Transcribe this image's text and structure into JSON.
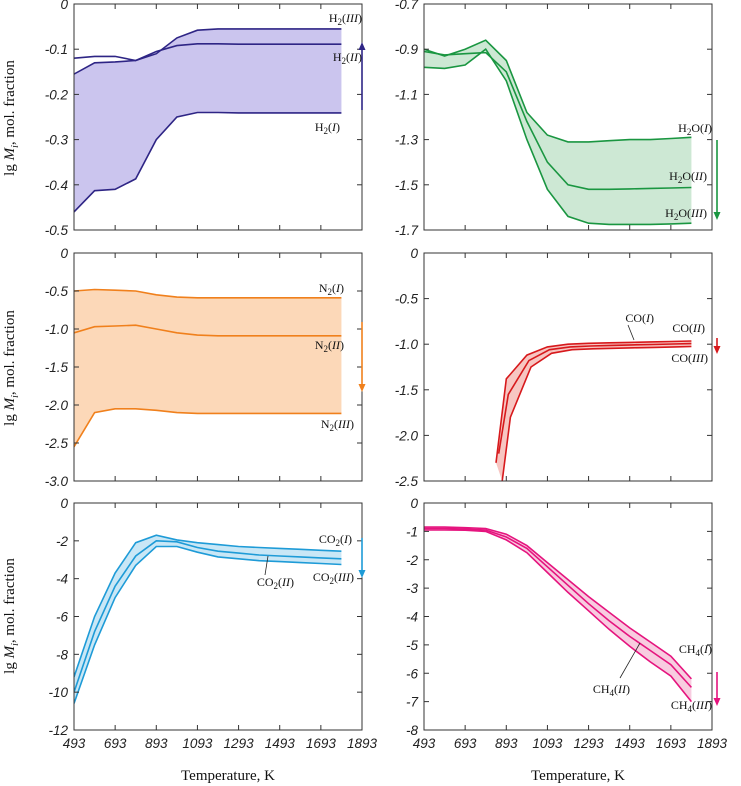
{
  "chart_data": [
    {
      "type": "area",
      "color": "#2e2585",
      "fill": "#cbc5ee",
      "ylim": [
        -0.5,
        0
      ],
      "yticks": [
        "0",
        "-0.1",
        "-0.2",
        "-0.3",
        "-0.4",
        "-0.5"
      ],
      "ytick_values": [
        0,
        -0.1,
        -0.2,
        -0.3,
        -0.4,
        -0.5
      ],
      "series": [
        {
          "name": "H2(III)",
          "x": [
            493,
            593,
            693,
            793,
            893,
            993,
            1093,
            1193,
            1293,
            1393,
            1493,
            1593,
            1693,
            1793
          ],
          "y": [
            -0.155,
            -0.13,
            -0.128,
            -0.125,
            -0.11,
            -0.075,
            -0.058,
            -0.055,
            -0.055,
            -0.055,
            -0.055,
            -0.055,
            -0.055,
            -0.055
          ]
        },
        {
          "name": "H2(II)",
          "x": [
            493,
            593,
            693,
            793,
            893,
            993,
            1093,
            1193,
            1293,
            1393,
            1493,
            1593,
            1693,
            1793
          ],
          "y": [
            -0.12,
            -0.116,
            -0.116,
            -0.125,
            -0.105,
            -0.092,
            -0.088,
            -0.088,
            -0.089,
            -0.089,
            -0.089,
            -0.089,
            -0.089,
            -0.089
          ]
        },
        {
          "name": "H2(I)",
          "x": [
            493,
            593,
            693,
            793,
            893,
            993,
            1093,
            1193,
            1293,
            1393,
            1493,
            1593,
            1693,
            1793
          ],
          "y": [
            -0.46,
            -0.413,
            -0.41,
            -0.387,
            -0.3,
            -0.25,
            -0.24,
            -0.24,
            -0.241,
            -0.241,
            -0.241,
            -0.241,
            -0.241,
            -0.241
          ]
        }
      ],
      "labels": [
        {
          "base": "H",
          "sub": "2",
          "roman": "III",
          "text": "H2(III)"
        },
        {
          "base": "H",
          "sub": "2",
          "roman": "II",
          "text": "H2(II)"
        },
        {
          "base": "H",
          "sub": "2",
          "roman": "I",
          "text": "H2(I)"
        }
      ],
      "arrow": "up"
    },
    {
      "type": "area",
      "color": "#1a9641",
      "fill": "#cde8d4",
      "ylim": [
        -1.7,
        -0.7
      ],
      "yticks": [
        "-0.7",
        "-0.9",
        "-1.1",
        "-1.3",
        "-1.5",
        "-1.7"
      ],
      "ytick_values": [
        -0.7,
        -0.9,
        -1.1,
        -1.3,
        -1.5,
        -1.7
      ],
      "series": [
        {
          "name": "H2O(I)",
          "x": [
            493,
            593,
            693,
            793,
            893,
            993,
            1093,
            1193,
            1293,
            1393,
            1493,
            1593,
            1693,
            1793
          ],
          "y": [
            -0.9,
            -0.93,
            -0.9,
            -0.86,
            -0.95,
            -1.18,
            -1.28,
            -1.31,
            -1.31,
            -1.305,
            -1.3,
            -1.3,
            -1.295,
            -1.29
          ]
        },
        {
          "name": "H2O(II)",
          "x": [
            493,
            593,
            693,
            793,
            893,
            993,
            1093,
            1193,
            1293,
            1393,
            1493,
            1593,
            1693,
            1793
          ],
          "y": [
            -0.91,
            -0.925,
            -0.92,
            -0.915,
            -1.0,
            -1.22,
            -1.4,
            -1.5,
            -1.52,
            -1.52,
            -1.518,
            -1.516,
            -1.514,
            -1.512
          ]
        },
        {
          "name": "H2O(III)",
          "x": [
            493,
            593,
            693,
            793,
            893,
            993,
            1093,
            1193,
            1293,
            1393,
            1493,
            1593,
            1693,
            1793
          ],
          "y": [
            -0.98,
            -0.985,
            -0.97,
            -0.9,
            -1.04,
            -1.3,
            -1.52,
            -1.64,
            -1.67,
            -1.675,
            -1.675,
            -1.675,
            -1.673,
            -1.67
          ]
        }
      ],
      "labels": [
        {
          "base": "H",
          "sub": "2",
          "tail": "O",
          "roman": "I",
          "text": "H2O(I)"
        },
        {
          "base": "H",
          "sub": "2",
          "tail": "O",
          "roman": "II",
          "text": "H2O(II)"
        },
        {
          "base": "H",
          "sub": "2",
          "tail": "O",
          "roman": "III",
          "text": "H2O(III)"
        }
      ],
      "arrow": "down"
    },
    {
      "type": "area",
      "color": "#f0801c",
      "fill": "#fcd8b8",
      "ylim": [
        -3.0,
        0
      ],
      "yticks": [
        "0",
        "-0.5",
        "-1.0",
        "-1.5",
        "-2.0",
        "-2.5",
        "-3.0"
      ],
      "ytick_values": [
        0,
        -0.5,
        -1.0,
        -1.5,
        -2.0,
        -2.5,
        -3.0
      ],
      "series": [
        {
          "name": "N2(I)",
          "x": [
            493,
            593,
            693,
            793,
            893,
            993,
            1093,
            1193,
            1293,
            1393,
            1493,
            1593,
            1693,
            1793
          ],
          "y": [
            -0.5,
            -0.48,
            -0.49,
            -0.5,
            -0.55,
            -0.58,
            -0.59,
            -0.59,
            -0.59,
            -0.59,
            -0.59,
            -0.59,
            -0.59,
            -0.59
          ]
        },
        {
          "name": "N2(II)",
          "x": [
            493,
            593,
            693,
            793,
            893,
            993,
            1093,
            1193,
            1293,
            1393,
            1493,
            1593,
            1693,
            1793
          ],
          "y": [
            -1.05,
            -0.97,
            -0.96,
            -0.95,
            -1.0,
            -1.05,
            -1.08,
            -1.09,
            -1.09,
            -1.09,
            -1.09,
            -1.09,
            -1.09,
            -1.09
          ]
        },
        {
          "name": "N2(III)",
          "x": [
            493,
            593,
            693,
            793,
            893,
            993,
            1093,
            1193,
            1293,
            1393,
            1493,
            1593,
            1693,
            1793
          ],
          "y": [
            -2.55,
            -2.1,
            -2.05,
            -2.05,
            -2.07,
            -2.1,
            -2.11,
            -2.11,
            -2.11,
            -2.11,
            -2.11,
            -2.11,
            -2.11,
            -2.11
          ]
        }
      ],
      "labels": [
        {
          "base": "N",
          "sub": "2",
          "roman": "I",
          "text": "N2(I)"
        },
        {
          "base": "N",
          "sub": "2",
          "roman": "II",
          "text": "N2(II)"
        },
        {
          "base": "N",
          "sub": "2",
          "roman": "III",
          "text": "N2(III)"
        }
      ],
      "arrow": "down"
    },
    {
      "type": "area",
      "color": "#d7191c",
      "fill": "#f7c6c2",
      "ylim": [
        -2.5,
        0
      ],
      "yticks": [
        "0",
        "-0.5",
        "-1.0",
        "-1.5",
        "-2.0",
        "-2.5"
      ],
      "ytick_values": [
        0,
        -0.5,
        -1.0,
        -1.5,
        -2.0,
        -2.5
      ],
      "series": [
        {
          "name": "CO(I)",
          "x": [
            843,
            893,
            993,
            1093,
            1193,
            1293,
            1393,
            1493,
            1593,
            1693,
            1793
          ],
          "y": [
            -2.3,
            -1.38,
            -1.12,
            -1.03,
            -1.0,
            -0.99,
            -0.985,
            -0.98,
            -0.975,
            -0.97,
            -0.965
          ]
        },
        {
          "name": "CO(II)",
          "x": [
            856,
            903,
            1003,
            1103,
            1203,
            1303,
            1403,
            1503,
            1603,
            1703,
            1793
          ],
          "y": [
            -2.2,
            -1.55,
            -1.18,
            -1.06,
            -1.03,
            -1.02,
            -1.013,
            -1.008,
            -1.003,
            -0.998,
            -0.993
          ]
        },
        {
          "name": "CO(III)",
          "x": [
            873,
            913,
            1013,
            1113,
            1213,
            1313,
            1413,
            1513,
            1613,
            1713,
            1793
          ],
          "y": [
            -2.5,
            -1.8,
            -1.25,
            -1.1,
            -1.06,
            -1.05,
            -1.045,
            -1.04,
            -1.035,
            -1.03,
            -1.025
          ]
        }
      ],
      "labels": [
        {
          "base": "CO",
          "roman": "I",
          "text": "CO(I)"
        },
        {
          "base": "CO",
          "roman": "II",
          "text": "CO(II)"
        },
        {
          "base": "CO",
          "roman": "III",
          "text": "CO(III)"
        }
      ],
      "arrow": "down"
    },
    {
      "type": "area",
      "color": "#1e9bd7",
      "fill": "#c9e7f6",
      "ylim": [
        -12,
        0
      ],
      "yticks": [
        "0",
        "-2",
        "-4",
        "-6",
        "-8",
        "-10",
        "-12"
      ],
      "ytick_values": [
        0,
        -2,
        -4,
        -6,
        -8,
        -10,
        -12
      ],
      "series": [
        {
          "name": "CO2(I)",
          "x": [
            493,
            593,
            693,
            793,
            893,
            993,
            1093,
            1193,
            1293,
            1393,
            1493,
            1593,
            1693,
            1793
          ],
          "y": [
            -9.2,
            -6.0,
            -3.7,
            -2.1,
            -1.7,
            -1.95,
            -2.1,
            -2.2,
            -2.3,
            -2.35,
            -2.4,
            -2.45,
            -2.5,
            -2.55
          ]
        },
        {
          "name": "CO2(II)",
          "x": [
            493,
            593,
            693,
            793,
            893,
            993,
            1093,
            1193,
            1293,
            1393,
            1493,
            1593,
            1693,
            1793
          ],
          "y": [
            -10.0,
            -6.8,
            -4.4,
            -2.8,
            -2.0,
            -2.05,
            -2.35,
            -2.55,
            -2.65,
            -2.75,
            -2.8,
            -2.85,
            -2.9,
            -2.95
          ]
        },
        {
          "name": "CO2(III)",
          "x": [
            493,
            593,
            693,
            793,
            893,
            993,
            1093,
            1193,
            1293,
            1393,
            1493,
            1593,
            1693,
            1793
          ],
          "y": [
            -10.6,
            -7.5,
            -5.0,
            -3.3,
            -2.3,
            -2.3,
            -2.6,
            -2.85,
            -2.95,
            -3.05,
            -3.1,
            -3.15,
            -3.2,
            -3.25
          ]
        }
      ],
      "labels": [
        {
          "base": "CO",
          "sub": "2",
          "roman": "I",
          "text": "CO2(I)"
        },
        {
          "base": "CO",
          "sub": "2",
          "roman": "II",
          "text": "CO2(II)"
        },
        {
          "base": "CO",
          "sub": "2",
          "roman": "III",
          "text": "CO2(III)"
        }
      ],
      "arrow": "down"
    },
    {
      "type": "area",
      "color": "#e5147e",
      "fill": "#f8cce0",
      "ylim": [
        -8,
        0
      ],
      "yticks": [
        "0",
        "-1",
        "-2",
        "-3",
        "-4",
        "-5",
        "-6",
        "-7",
        "-8"
      ],
      "ytick_values": [
        0,
        -1,
        -2,
        -3,
        -4,
        -5,
        -6,
        -7,
        -8
      ],
      "series": [
        {
          "name": "CH4(I)",
          "x": [
            493,
            593,
            693,
            793,
            893,
            993,
            1093,
            1193,
            1293,
            1393,
            1493,
            1593,
            1693,
            1793
          ],
          "y": [
            -0.85,
            -0.85,
            -0.87,
            -0.9,
            -1.1,
            -1.5,
            -2.1,
            -2.7,
            -3.3,
            -3.85,
            -4.4,
            -4.9,
            -5.4,
            -6.2
          ]
        },
        {
          "name": "CH4(II)",
          "x": [
            493,
            593,
            693,
            793,
            893,
            993,
            1093,
            1193,
            1293,
            1393,
            1493,
            1593,
            1693,
            1793
          ],
          "y": [
            -0.9,
            -0.9,
            -0.92,
            -0.95,
            -1.2,
            -1.6,
            -2.25,
            -2.9,
            -3.55,
            -4.15,
            -4.7,
            -5.2,
            -5.7,
            -6.5
          ]
        },
        {
          "name": "CH4(III)",
          "x": [
            493,
            593,
            693,
            793,
            893,
            993,
            1093,
            1193,
            1293,
            1393,
            1493,
            1593,
            1693,
            1793
          ],
          "y": [
            -0.95,
            -0.95,
            -0.96,
            -1.0,
            -1.3,
            -1.75,
            -2.45,
            -3.15,
            -3.8,
            -4.45,
            -5.05,
            -5.6,
            -6.1,
            -7.0
          ]
        }
      ],
      "labels": [
        {
          "base": "CH",
          "sub": "4",
          "roman": "I",
          "text": "CH4(I)"
        },
        {
          "base": "CH",
          "sub": "4",
          "roman": "II",
          "text": "CH4(II)"
        },
        {
          "base": "CH",
          "sub": "4",
          "roman": "III",
          "text": "CH4(III)"
        }
      ],
      "arrow": "down"
    }
  ],
  "shared": {
    "xlim": [
      493,
      1893
    ],
    "xticks": [
      "493",
      "693",
      "893",
      "1093",
      "1293",
      "1493",
      "1693",
      "1893"
    ],
    "xtick_values": [
      493,
      693,
      893,
      1093,
      1293,
      1493,
      1693,
      1893
    ],
    "xlabel": "Temperature, K",
    "ylabel_prefix": "lg ",
    "ylabel_var": "M",
    "ylabel_sub": "i",
    "ylabel_suffix": ", mol. fraction"
  }
}
